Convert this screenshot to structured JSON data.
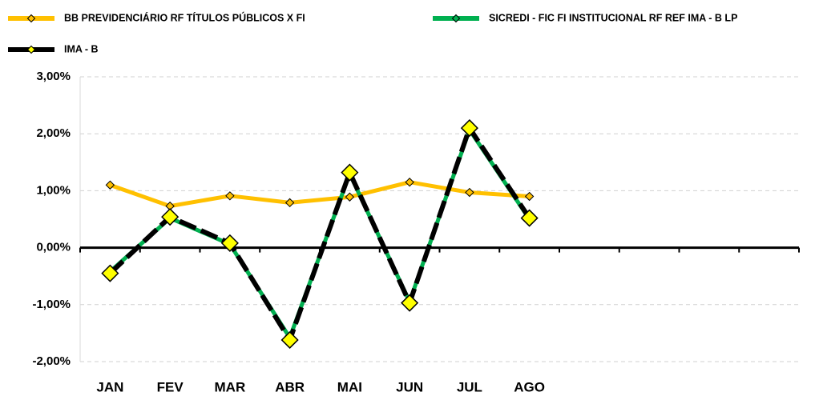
{
  "chart_data": {
    "type": "line",
    "categories": [
      "JAN",
      "FEV",
      "MAR",
      "ABR",
      "MAI",
      "JUN",
      "JUL",
      "AGO",
      null,
      null,
      null,
      null
    ],
    "series": [
      {
        "name": "BB PREVIDENCIÁRIO RF TÍTULOS PÚBLICOS X FI",
        "color": "#ffc000",
        "marker_color": "#ffc000",
        "values": [
          1.1,
          0.73,
          0.91,
          0.79,
          0.89,
          1.15,
          0.97,
          0.9,
          null,
          null,
          null,
          null
        ]
      },
      {
        "name": "SICREDI - FIC FI INSTITUCIONAL RF REF IMA - B LP",
        "color": "#00b050",
        "marker_color": "#00b050",
        "values": [
          -0.42,
          0.52,
          0.06,
          -1.58,
          1.3,
          -0.95,
          2.07,
          0.5,
          null,
          null,
          null,
          null
        ]
      },
      {
        "name": "IMA - B",
        "color": "#000000",
        "marker_color": "#ffff00",
        "values": [
          -0.45,
          0.54,
          0.08,
          -1.62,
          1.32,
          -0.97,
          2.1,
          0.52,
          null,
          null,
          null,
          null
        ]
      }
    ],
    "ylim": [
      -2,
      3
    ],
    "yticks": [
      {
        "value": -2,
        "label": "-2,00%"
      },
      {
        "value": -1,
        "label": "-1,00%"
      },
      {
        "value": 0,
        "label": "0,00%"
      },
      {
        "value": 1,
        "label": "1,00%"
      },
      {
        "value": 2,
        "label": "2,00%"
      },
      {
        "value": 3,
        "label": "3,00%"
      }
    ],
    "grid": true,
    "legend": "top"
  }
}
